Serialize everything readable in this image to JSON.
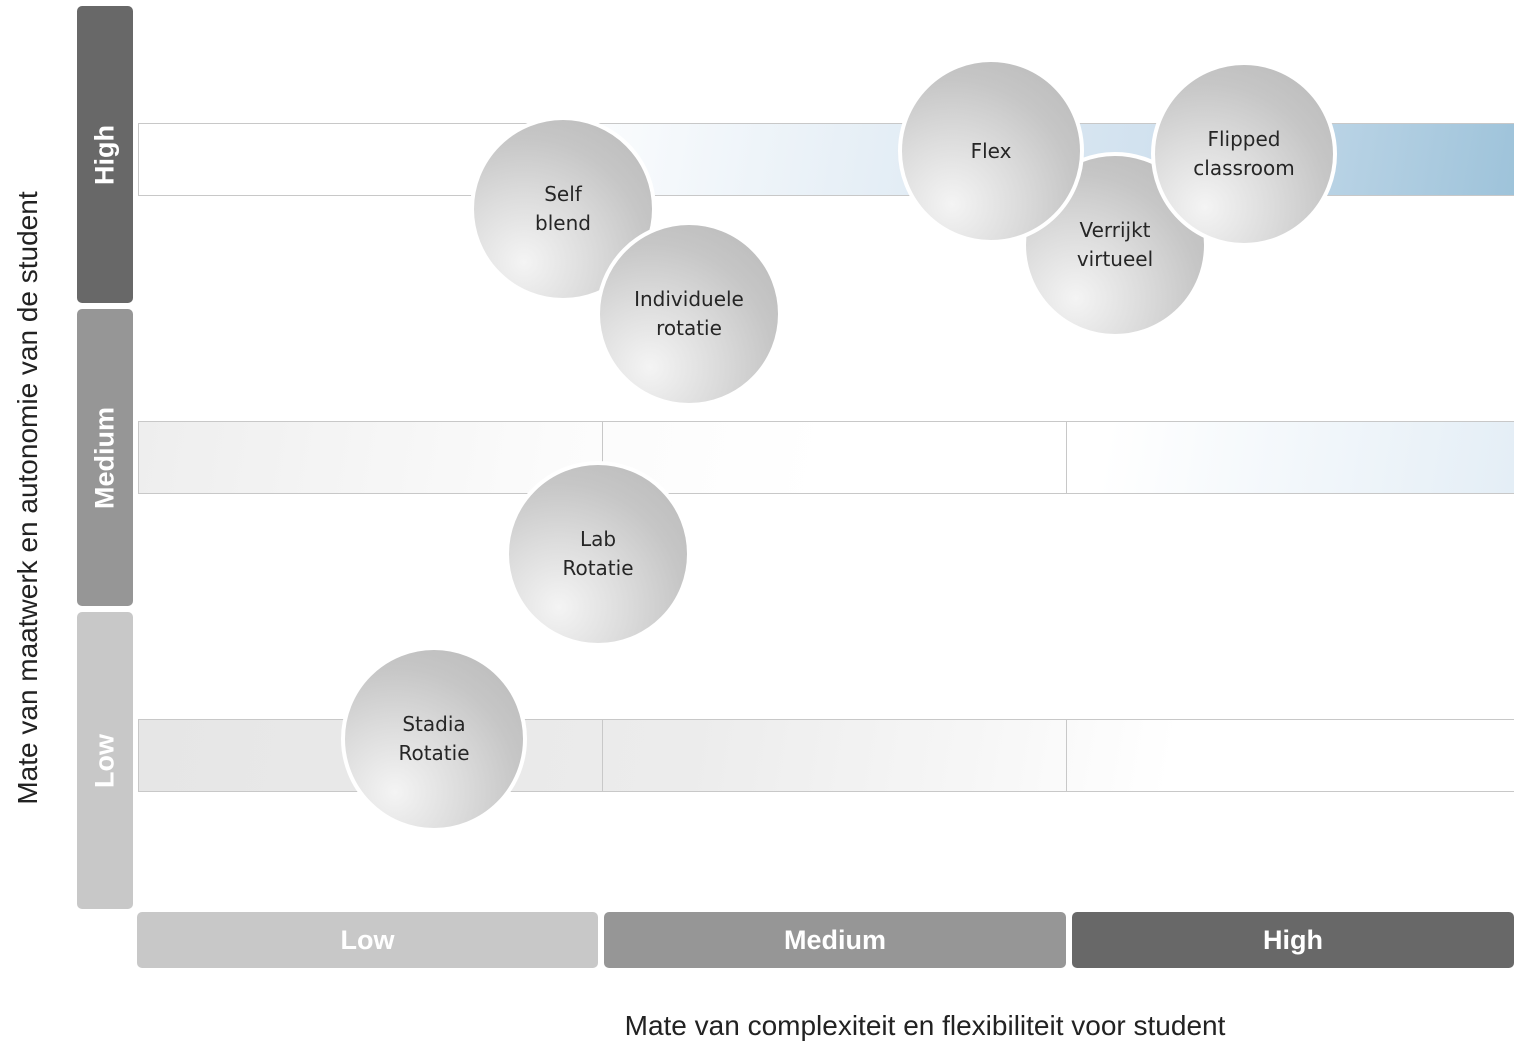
{
  "y_axis_title": "Mate van maatwerk en autonomie van de student",
  "x_axis_title": "Mate van complexiteit en flexibiliteit voor student",
  "y_levels": {
    "high": "High",
    "medium": "Medium",
    "low": "Low"
  },
  "x_levels": {
    "low": "Low",
    "medium": "Medium",
    "high": "High"
  },
  "models": {
    "self_blend": "Self\nblend",
    "individuele_rotatie": "Individuele\nrotatie",
    "flex": "Flex",
    "verrijkt_virtueel": "Verrijkt\nvirtueel",
    "flipped_classroom": "Flipped\nclassroom",
    "lab_rotatie": "Lab\nRotatie",
    "stadia_rotatie": "Stadia\nRotatie"
  },
  "colors": {
    "level_dark": "#686868",
    "level_mid": "#969696",
    "level_light": "#c8c8c8",
    "band_accent": "#9ec3da"
  }
}
